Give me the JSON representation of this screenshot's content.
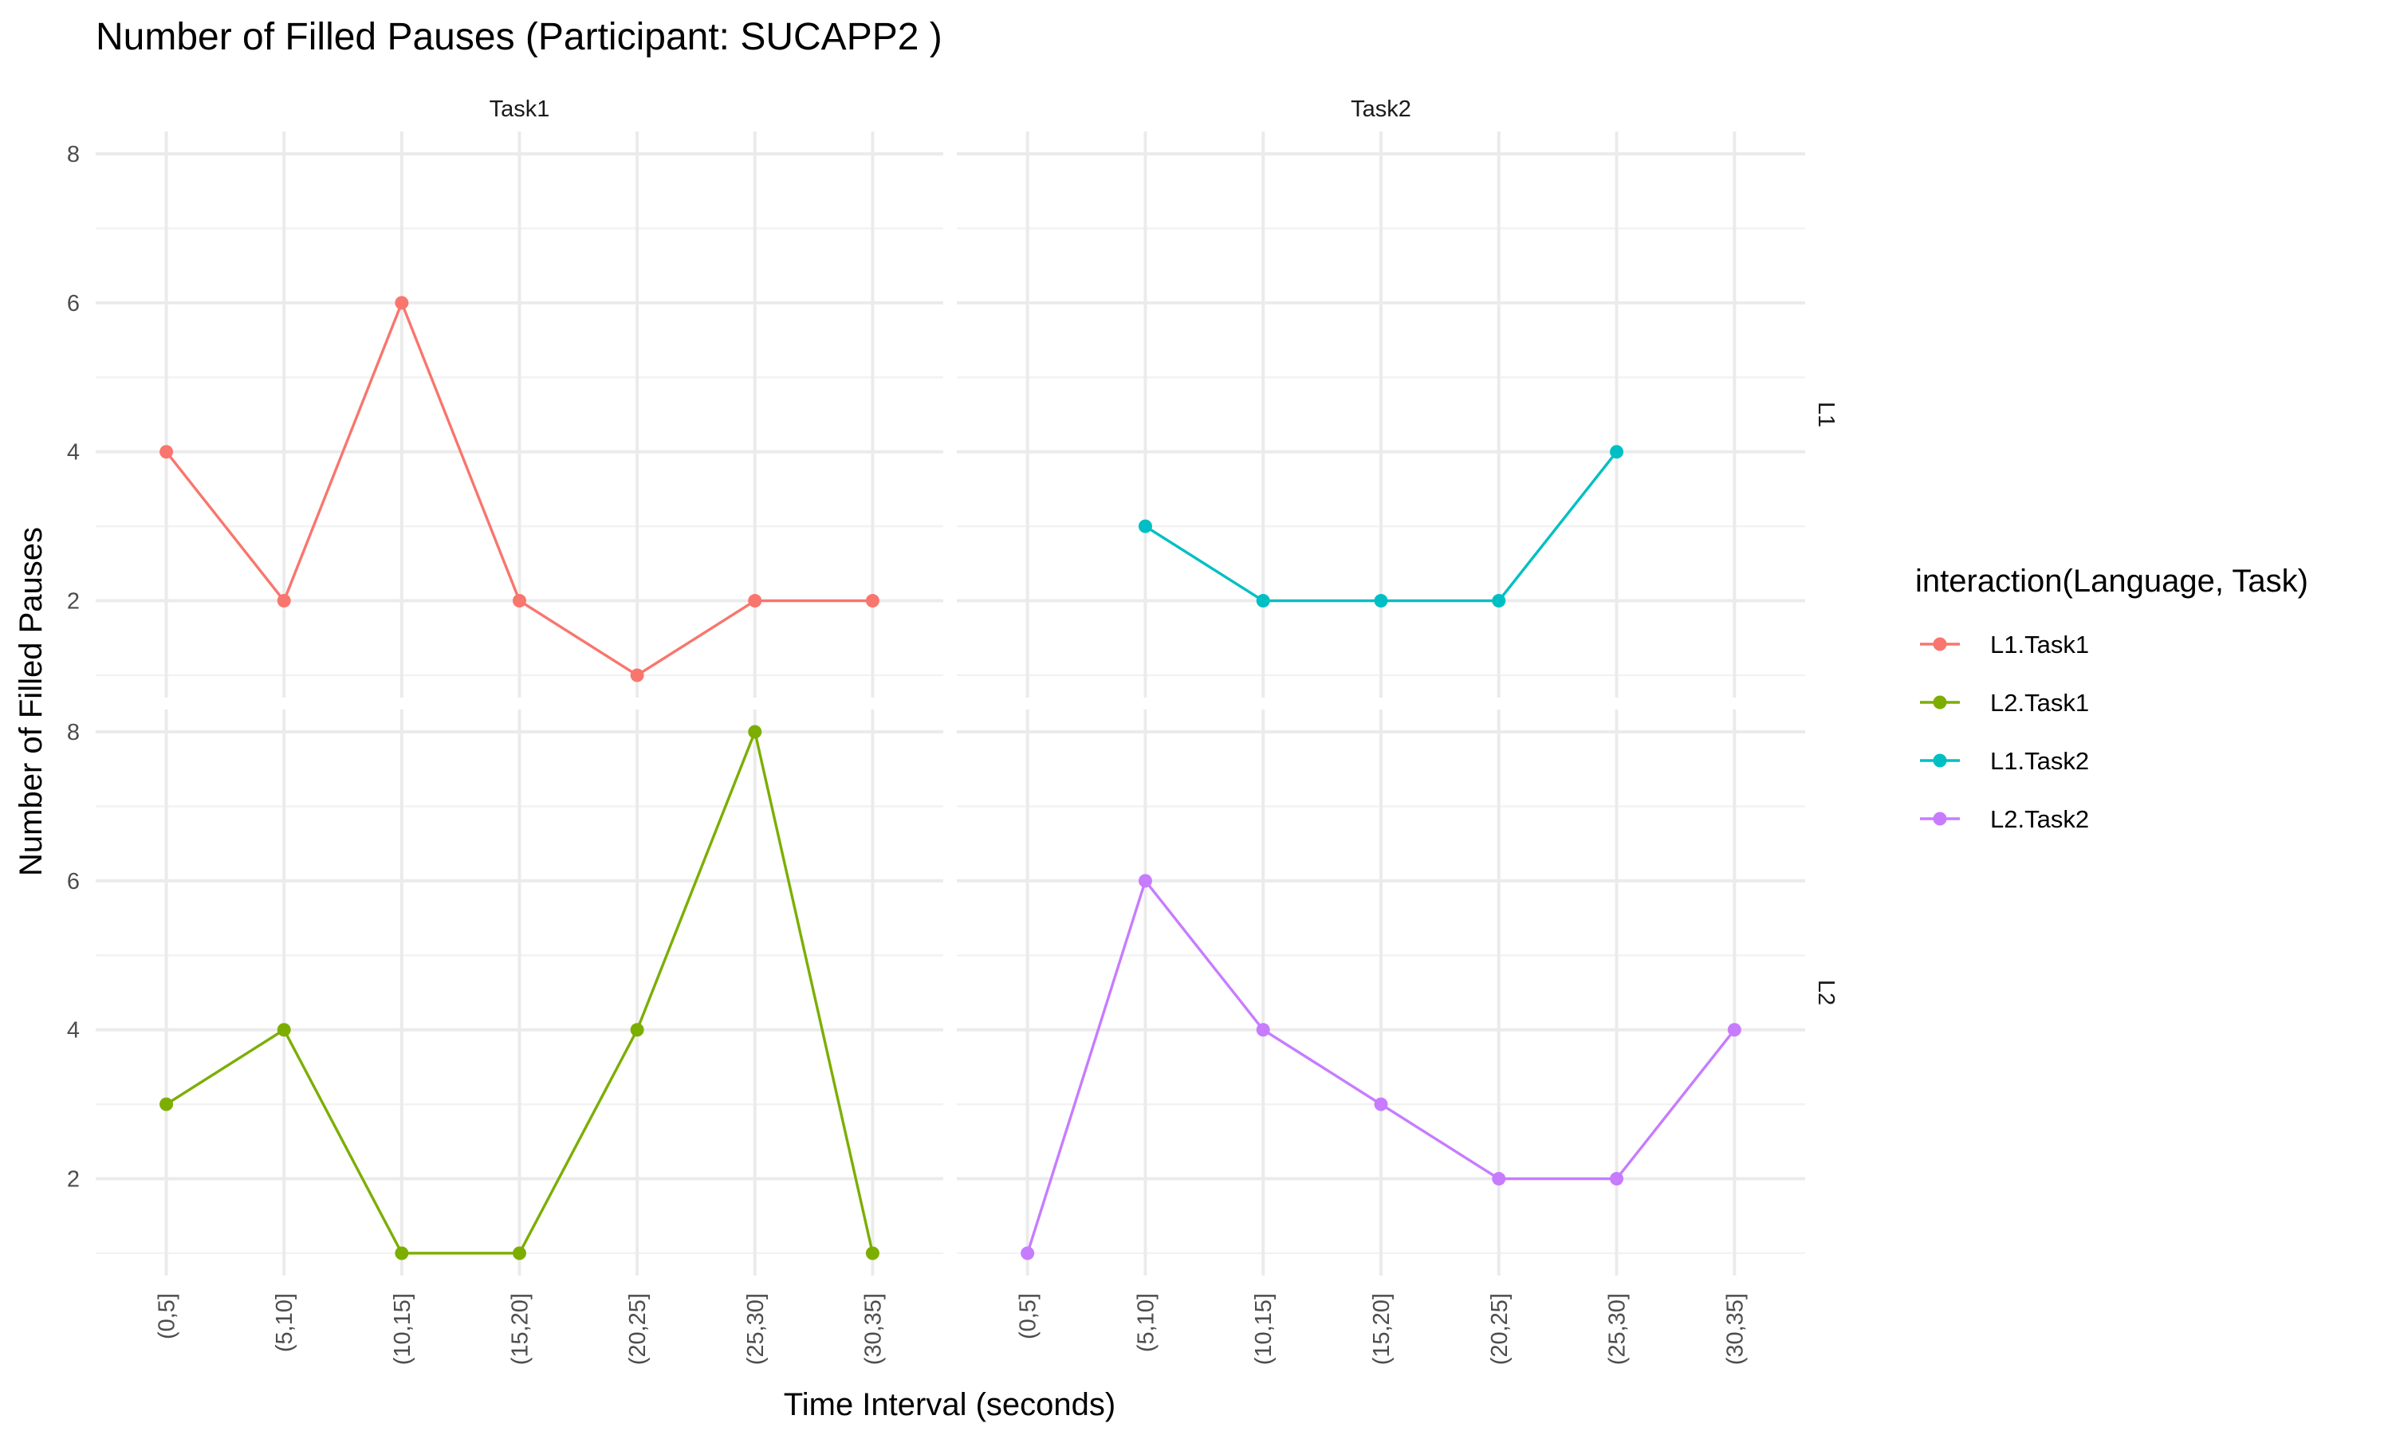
{
  "chart_data": {
    "type": "line",
    "title": "Number of Filled Pauses (Participant: SUCAPP2 )",
    "xlabel": "Time Interval (seconds)",
    "ylabel": "Number of Filled Pauses",
    "categories": [
      "(0,5]",
      "(5,10]",
      "(10,15]",
      "(15,20]",
      "(20,25]",
      "(25,30]",
      "(30,35]"
    ],
    "ylim": [
      0.7,
      8.3
    ],
    "yticks": [
      2,
      4,
      6,
      8
    ],
    "grid": true,
    "facet_columns": [
      "Task1",
      "Task2"
    ],
    "facet_rows": [
      "L1",
      "L2"
    ],
    "legend": {
      "title": "interaction(Language, Task)",
      "position": "right",
      "entries": [
        {
          "label": "L1.Task1",
          "color": "#F8766D"
        },
        {
          "label": "L2.Task1",
          "color": "#7CAE00"
        },
        {
          "label": "L1.Task2",
          "color": "#00BFC4"
        },
        {
          "label": "L2.Task2",
          "color": "#C77CFF"
        }
      ]
    },
    "panels": [
      {
        "row": "L1",
        "col": "Task1",
        "series": "L1.Task1",
        "color": "#F8766D",
        "points": [
          {
            "x": "(0,5]",
            "y": 4
          },
          {
            "x": "(5,10]",
            "y": 2
          },
          {
            "x": "(10,15]",
            "y": 6
          },
          {
            "x": "(15,20]",
            "y": 2
          },
          {
            "x": "(20,25]",
            "y": 1
          },
          {
            "x": "(25,30]",
            "y": 2
          },
          {
            "x": "(30,35]",
            "y": 2
          }
        ]
      },
      {
        "row": "L1",
        "col": "Task2",
        "series": "L1.Task2",
        "color": "#00BFC4",
        "points": [
          {
            "x": "(5,10]",
            "y": 3
          },
          {
            "x": "(10,15]",
            "y": 2
          },
          {
            "x": "(15,20]",
            "y": 2
          },
          {
            "x": "(20,25]",
            "y": 2
          },
          {
            "x": "(25,30]",
            "y": 4
          }
        ]
      },
      {
        "row": "L2",
        "col": "Task1",
        "series": "L2.Task1",
        "color": "#7CAE00",
        "points": [
          {
            "x": "(0,5]",
            "y": 3
          },
          {
            "x": "(5,10]",
            "y": 4
          },
          {
            "x": "(10,15]",
            "y": 1
          },
          {
            "x": "(15,20]",
            "y": 1
          },
          {
            "x": "(20,25]",
            "y": 4
          },
          {
            "x": "(25,30]",
            "y": 8
          },
          {
            "x": "(30,35]",
            "y": 1
          }
        ]
      },
      {
        "row": "L2",
        "col": "Task2",
        "series": "L2.Task2",
        "color": "#C77CFF",
        "points": [
          {
            "x": "(0,5]",
            "y": 1
          },
          {
            "x": "(5,10]",
            "y": 6
          },
          {
            "x": "(10,15]",
            "y": 4
          },
          {
            "x": "(15,20]",
            "y": 3
          },
          {
            "x": "(20,25]",
            "y": 2
          },
          {
            "x": "(25,30]",
            "y": 2
          },
          {
            "x": "(30,35]",
            "y": 4
          }
        ]
      }
    ]
  }
}
